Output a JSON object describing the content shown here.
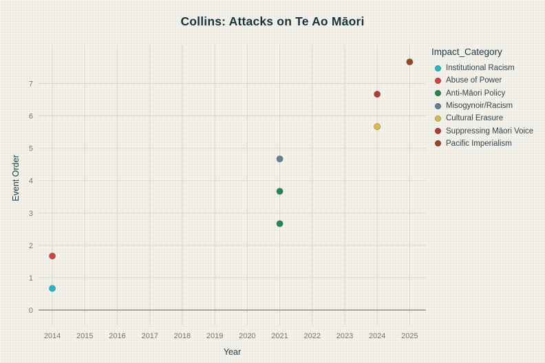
{
  "page": {
    "background_color": "#efede3",
    "title_color": "#14333f",
    "axis_label_color": "#1c3a47",
    "tick_label_color": "#73726d",
    "gridline_color": "#d9d7cc",
    "zero_line_color": "#8e8d86"
  },
  "chart_data": {
    "type": "scatter",
    "title": "Collins: Attacks on Te Ao Māori",
    "xlabel": "Year",
    "ylabel": "Event Order",
    "legend_title": "Impact_Category",
    "legend_position": "right",
    "grid": true,
    "xlim": [
      2013.575,
      2025.5
    ],
    "ylim": [
      0,
      8.2
    ],
    "x_ticks": [
      2014,
      2015,
      2016,
      2017,
      2018,
      2019,
      2020,
      2021,
      2022,
      2023,
      2024,
      2025
    ],
    "y_ticks": [
      0,
      1,
      2,
      3,
      4,
      5,
      6,
      7
    ],
    "series": [
      {
        "name": "Institutional Racism",
        "color": "#1cb8cc",
        "points": [
          {
            "x": 2014,
            "y": 0.67
          }
        ]
      },
      {
        "name": "Abuse of Power",
        "color": "#d64242",
        "points": [
          {
            "x": 2014,
            "y": 1.67
          }
        ]
      },
      {
        "name": "Anti-Māori Policy",
        "color": "#1f8a4d",
        "points": [
          {
            "x": 2021,
            "y": 2.67
          },
          {
            "x": 2021,
            "y": 3.67
          }
        ]
      },
      {
        "name": "Misogynoir/Racism",
        "color": "#5d8195",
        "points": [
          {
            "x": 2021,
            "y": 4.67
          }
        ]
      },
      {
        "name": "Cultural Erasure",
        "color": "#d8bc4a",
        "points": [
          {
            "x": 2024,
            "y": 5.67
          }
        ]
      },
      {
        "name": "Suppressing Māori Voice",
        "color": "#b23a3f",
        "points": [
          {
            "x": 2024,
            "y": 6.67
          }
        ]
      },
      {
        "name": "Pacific Imperialism",
        "color": "#9c4524",
        "points": [
          {
            "x": 2025,
            "y": 7.67
          }
        ]
      }
    ]
  }
}
